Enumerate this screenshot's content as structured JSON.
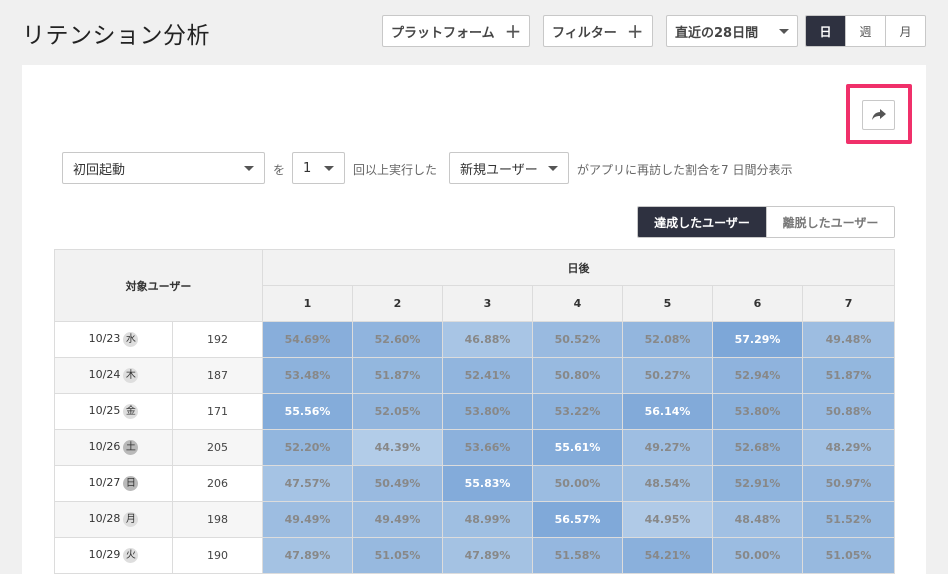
{
  "header": {
    "title": "リテンション分析",
    "platform_label": "プラットフォーム",
    "filter_label": "フィルター",
    "range_label": "直近の28日間",
    "period_tabs": [
      "日",
      "週",
      "月"
    ]
  },
  "controls": {
    "event_select": "初回起動",
    "text_wo": "を",
    "count_select": "1",
    "text_times": "回以上実行した",
    "user_select": "新規ユーザー",
    "text_desc": "がアプリに再訪した割合を7 日間分表示",
    "toggle_on": "達成したユーザー",
    "toggle_off": "離脱したユーザー"
  },
  "table": {
    "target_header": "対象ユーザー",
    "days_header": "日後",
    "day_columns": [
      "1",
      "2",
      "3",
      "4",
      "5",
      "6",
      "7"
    ],
    "rows": [
      {
        "date": "10/23",
        "dow": "水",
        "weekend": false,
        "count": "192",
        "values": [
          54.69,
          52.6,
          46.88,
          50.52,
          52.08,
          57.29,
          49.48
        ],
        "labels": [
          "54.69%",
          "52.60%",
          "46.88%",
          "50.52%",
          "52.08%",
          "57.29%",
          "49.48%"
        ]
      },
      {
        "date": "10/24",
        "dow": "木",
        "weekend": false,
        "count": "187",
        "values": [
          53.48,
          51.87,
          52.41,
          50.8,
          50.27,
          52.94,
          51.87
        ],
        "labels": [
          "53.48%",
          "51.87%",
          "52.41%",
          "50.80%",
          "50.27%",
          "52.94%",
          "51.87%"
        ]
      },
      {
        "date": "10/25",
        "dow": "金",
        "weekend": false,
        "count": "171",
        "values": [
          55.56,
          52.05,
          53.8,
          53.22,
          56.14,
          53.8,
          50.88
        ],
        "labels": [
          "55.56%",
          "52.05%",
          "53.80%",
          "53.22%",
          "56.14%",
          "53.80%",
          "50.88%"
        ]
      },
      {
        "date": "10/26",
        "dow": "土",
        "weekend": true,
        "count": "205",
        "values": [
          52.2,
          44.39,
          53.66,
          55.61,
          49.27,
          52.68,
          48.29
        ],
        "labels": [
          "52.20%",
          "44.39%",
          "53.66%",
          "55.61%",
          "49.27%",
          "52.68%",
          "48.29%"
        ]
      },
      {
        "date": "10/27",
        "dow": "日",
        "weekend": true,
        "count": "206",
        "values": [
          47.57,
          50.49,
          55.83,
          50.0,
          48.54,
          52.91,
          50.97
        ],
        "labels": [
          "47.57%",
          "50.49%",
          "55.83%",
          "50.00%",
          "48.54%",
          "52.91%",
          "50.97%"
        ]
      },
      {
        "date": "10/28",
        "dow": "月",
        "weekend": false,
        "count": "198",
        "values": [
          49.49,
          49.49,
          48.99,
          56.57,
          44.95,
          48.48,
          51.52
        ],
        "labels": [
          "49.49%",
          "49.49%",
          "48.99%",
          "56.57%",
          "44.95%",
          "48.48%",
          "51.52%"
        ]
      },
      {
        "date": "10/29",
        "dow": "火",
        "weekend": false,
        "count": "190",
        "values": [
          47.89,
          51.05,
          47.89,
          51.58,
          54.21,
          50.0,
          51.05
        ],
        "labels": [
          "47.89%",
          "51.05%",
          "47.89%",
          "51.58%",
          "54.21%",
          "50.00%",
          "51.05%"
        ]
      }
    ]
  },
  "colors": {
    "dark_button": "#2e3140",
    "highlight_border": "#f0306a",
    "heat_low": "#b0cae6",
    "heat_high": "#7ba6d8"
  },
  "icons": {
    "share": "share-arrow-icon"
  }
}
